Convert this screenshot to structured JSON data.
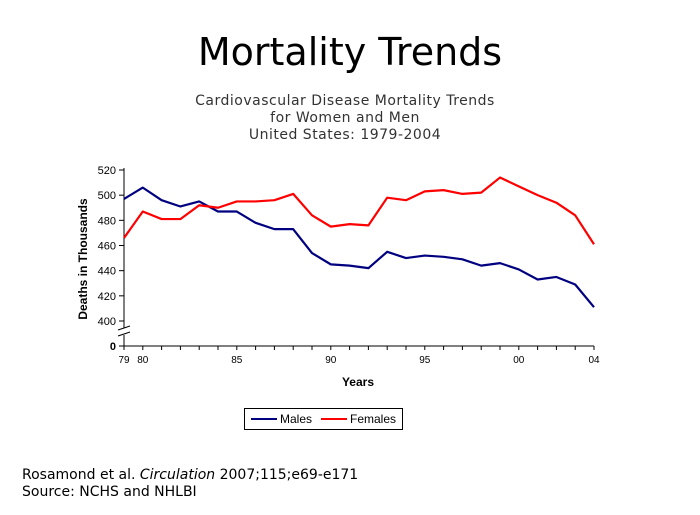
{
  "slide": {
    "title": "Mortality Trends",
    "citation_line1_author": "Rosamond et al.",
    "citation_line1_journal": "Circulation",
    "citation_line1_rest": "2007;115;e69-e171",
    "citation_line2": "Source: NCHS and NHLBI"
  },
  "chart_data": {
    "type": "line",
    "title_lines": [
      "Cardiovascular Disease Mortality Trends",
      "for Women and Men",
      "United States: 1979-2004"
    ],
    "xlabel": "Years",
    "ylabel": "Deaths in Thousands",
    "x": [
      1979,
      1980,
      1981,
      1982,
      1983,
      1984,
      1985,
      1986,
      1987,
      1988,
      1989,
      1990,
      1991,
      1992,
      1993,
      1994,
      1995,
      1996,
      1997,
      1998,
      1999,
      2000,
      2001,
      2002,
      2003,
      2004
    ],
    "x_tick_values": [
      1979,
      1980,
      1985,
      1990,
      1995,
      2000,
      2004
    ],
    "x_tick_labels": [
      "79",
      "80",
      "85",
      "90",
      "95",
      "00",
      "04"
    ],
    "y_ticks": [
      400,
      420,
      440,
      460,
      480,
      500,
      520
    ],
    "y_axis_break": true,
    "y_zero_label": "0",
    "ylim": [
      400,
      520
    ],
    "legend_position": "bottom",
    "series": [
      {
        "name": "Males",
        "color": "#000080",
        "values": [
          497,
          506,
          496,
          491,
          495,
          487,
          487,
          478,
          473,
          473,
          454,
          445,
          444,
          442,
          455,
          450,
          452,
          451,
          449,
          444,
          446,
          441,
          433,
          435,
          429,
          411
        ]
      },
      {
        "name": "Females",
        "color": "#ff0000",
        "values": [
          466,
          487,
          481,
          481,
          492,
          490,
          495,
          495,
          496,
          501,
          484,
          475,
          477,
          476,
          498,
          496,
          503,
          504,
          501,
          502,
          514,
          507,
          500,
          494,
          484,
          461
        ]
      }
    ]
  }
}
